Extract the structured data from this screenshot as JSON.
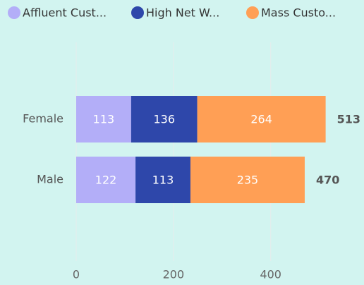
{
  "chart_data": {
    "type": "stacked-bar-horizontal",
    "categories": [
      "Female",
      "Male"
    ],
    "series": [
      {
        "name": "Affluent Cust...",
        "color": "#b3aef8",
        "values": [
          113,
          122
        ]
      },
      {
        "name": "High Net W...",
        "color": "#2e47aa",
        "values": [
          136,
          113
        ]
      },
      {
        "name": "Mass Custo...",
        "color": "#ff9f55",
        "values": [
          264,
          235
        ]
      }
    ],
    "totals": [
      513,
      470
    ],
    "xlim": [
      0,
      560
    ],
    "xticks": [
      0,
      200,
      400
    ],
    "grid": true,
    "legend": "top-left"
  }
}
